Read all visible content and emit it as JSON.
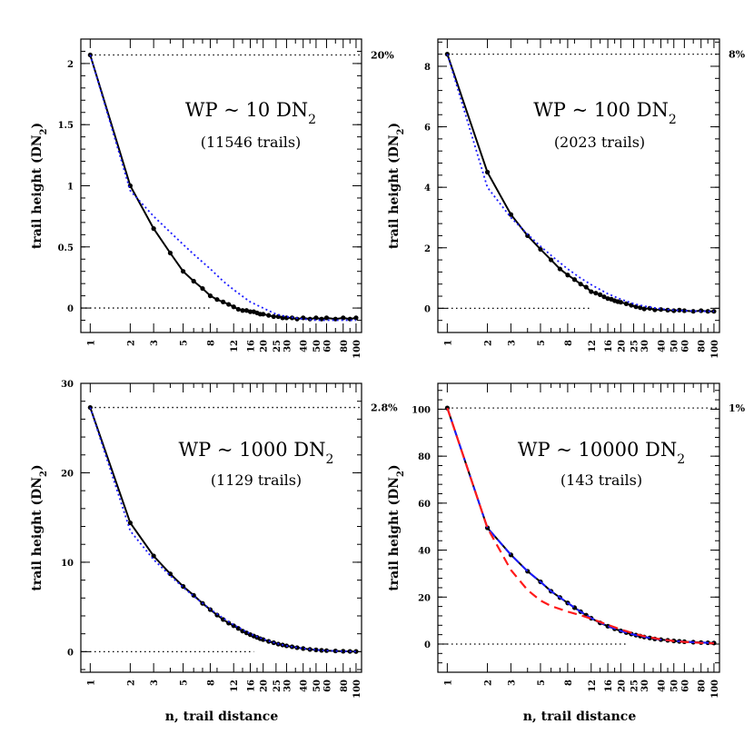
{
  "xlabel": "n, trail distance",
  "chart_data": [
    {
      "type": "line",
      "ylabel": "trail height (DN",
      "ylabel_sub": "2",
      "ylabel_close": ")",
      "label_wp": "WP ~ 10 DN",
      "label_wp_sub": "2",
      "label_trails": "(11546 trails)",
      "percent_label": "20%",
      "ylim": [
        -0.2,
        2.2
      ],
      "yticks": [
        0,
        0.5,
        1,
        1.5,
        2
      ],
      "ytick_labels": [
        "0",
        "0.5",
        "1",
        "1.5",
        "2"
      ],
      "xscale": "log",
      "xlim": [
        0.85,
        110
      ],
      "xticks": [
        1,
        2,
        3,
        5,
        8,
        12,
        16,
        20,
        25,
        30,
        40,
        50,
        60,
        80,
        100
      ],
      "xtick_labels": [
        "1",
        "2",
        "3",
        "5",
        "8",
        "12",
        "16",
        "20",
        "25",
        "30",
        "40",
        "50",
        "60",
        "80",
        "100"
      ],
      "hline_top": 2.07,
      "hline_zero_to_x": 8,
      "series": [
        {
          "style": "data",
          "color": "#000000",
          "x": [
            1,
            2,
            3,
            4,
            5,
            6,
            7,
            8,
            9,
            10,
            11,
            12,
            13,
            14,
            15,
            16,
            17,
            18,
            19,
            20,
            22,
            24,
            26,
            28,
            30,
            33,
            36,
            40,
            45,
            50,
            55,
            60,
            70,
            80,
            90,
            100
          ],
          "y": [
            2.07,
            1.0,
            0.65,
            0.45,
            0.3,
            0.22,
            0.16,
            0.1,
            0.07,
            0.05,
            0.03,
            0.01,
            -0.01,
            -0.02,
            -0.02,
            -0.03,
            -0.03,
            -0.04,
            -0.05,
            -0.05,
            -0.06,
            -0.07,
            -0.07,
            -0.08,
            -0.08,
            -0.08,
            -0.09,
            -0.08,
            -0.09,
            -0.08,
            -0.09,
            -0.08,
            -0.09,
            -0.08,
            -0.09,
            -0.08
          ]
        },
        {
          "style": "model",
          "color": "#1a1aff",
          "x": [
            1,
            2,
            3,
            4,
            5,
            6,
            8,
            10,
            12,
            16,
            20,
            25,
            30,
            40,
            50,
            60,
            80,
            100
          ],
          "y": [
            2.07,
            0.96,
            0.75,
            0.62,
            0.52,
            0.44,
            0.32,
            0.22,
            0.15,
            0.05,
            0.0,
            -0.05,
            -0.07,
            -0.09,
            -0.1,
            -0.1,
            -0.1,
            -0.1
          ]
        }
      ]
    },
    {
      "type": "line",
      "ylabel": "trail height (DN",
      "ylabel_sub": "2",
      "ylabel_close": ")",
      "label_wp": "WP ~ 100 DN",
      "label_wp_sub": "2",
      "label_trails": "(2023 trails)",
      "percent_label": "8%",
      "ylim": [
        -0.8,
        8.9
      ],
      "yticks": [
        0,
        2,
        4,
        6,
        8
      ],
      "ytick_labels": [
        "0",
        "2",
        "4",
        "6",
        "8"
      ],
      "xscale": "log",
      "xlim": [
        0.85,
        110
      ],
      "xticks": [
        1,
        2,
        3,
        5,
        8,
        12,
        16,
        20,
        25,
        30,
        40,
        50,
        60,
        80,
        100
      ],
      "xtick_labels": [
        "1",
        "2",
        "3",
        "5",
        "8",
        "12",
        "16",
        "20",
        "25",
        "30",
        "40",
        "50",
        "60",
        "80",
        "100"
      ],
      "hline_top": 8.4,
      "hline_zero_to_x": 12,
      "series": [
        {
          "style": "data",
          "color": "#000000",
          "x": [
            1,
            2,
            3,
            4,
            5,
            6,
            7,
            8,
            9,
            10,
            11,
            12,
            13,
            14,
            15,
            16,
            17,
            18,
            19,
            20,
            22,
            24,
            26,
            28,
            30,
            33,
            36,
            40,
            45,
            50,
            55,
            60,
            70,
            80,
            90,
            100
          ],
          "y": [
            8.4,
            4.5,
            3.1,
            2.4,
            1.95,
            1.6,
            1.3,
            1.1,
            0.95,
            0.8,
            0.7,
            0.55,
            0.5,
            0.45,
            0.38,
            0.32,
            0.3,
            0.25,
            0.22,
            0.2,
            0.15,
            0.1,
            0.05,
            0.02,
            -0.02,
            0.0,
            -0.05,
            -0.04,
            -0.06,
            -0.08,
            -0.06,
            -0.08,
            -0.1,
            -0.08,
            -0.1,
            -0.1
          ]
        },
        {
          "style": "model",
          "color": "#1a1aff",
          "x": [
            1,
            2,
            3,
            4,
            5,
            6,
            8,
            10,
            12,
            16,
            20,
            25,
            30,
            40,
            50,
            60,
            80,
            100
          ],
          "y": [
            8.4,
            4.0,
            3.0,
            2.45,
            2.05,
            1.75,
            1.3,
            1.0,
            0.78,
            0.48,
            0.3,
            0.15,
            0.07,
            -0.02,
            -0.06,
            -0.08,
            -0.1,
            -0.1
          ]
        }
      ]
    },
    {
      "type": "line",
      "ylabel": "trail height (DN",
      "ylabel_sub": "2",
      "ylabel_close": ")",
      "label_wp": "WP ~ 1000 DN",
      "label_wp_sub": "2",
      "label_trails": "(1129 trails)",
      "percent_label": "2.8%",
      "ylim": [
        -2.3,
        30
      ],
      "yticks": [
        0,
        10,
        20,
        30
      ],
      "ytick_labels": [
        "0",
        "10",
        "20",
        "30"
      ],
      "xscale": "log",
      "xlim": [
        0.85,
        110
      ],
      "xticks": [
        1,
        2,
        3,
        5,
        8,
        12,
        16,
        20,
        25,
        30,
        40,
        50,
        60,
        80,
        100
      ],
      "xtick_labels": [
        "1",
        "2",
        "3",
        "5",
        "8",
        "12",
        "16",
        "20",
        "25",
        "30",
        "40",
        "50",
        "60",
        "80",
        "100"
      ],
      "hline_top": 27.3,
      "hline_zero_to_x": 17,
      "series": [
        {
          "style": "data",
          "color": "#000000",
          "x": [
            1,
            2,
            3,
            4,
            5,
            6,
            7,
            8,
            9,
            10,
            11,
            12,
            13,
            14,
            15,
            16,
            17,
            18,
            19,
            20,
            22,
            24,
            26,
            28,
            30,
            33,
            36,
            40,
            45,
            50,
            55,
            60,
            70,
            80,
            90,
            100
          ],
          "y": [
            27.3,
            14.4,
            10.7,
            8.7,
            7.3,
            6.3,
            5.4,
            4.7,
            4.1,
            3.6,
            3.2,
            2.9,
            2.6,
            2.3,
            2.1,
            1.9,
            1.75,
            1.6,
            1.45,
            1.35,
            1.15,
            1.0,
            0.85,
            0.75,
            0.65,
            0.55,
            0.45,
            0.35,
            0.25,
            0.2,
            0.15,
            0.12,
            0.08,
            0.05,
            0.03,
            0.02
          ]
        },
        {
          "style": "model",
          "color": "#1a1aff",
          "x": [
            1,
            2,
            3,
            4,
            5,
            6,
            8,
            10,
            12,
            16,
            20,
            25,
            30,
            40,
            50,
            60,
            80,
            100
          ],
          "y": [
            27.3,
            13.5,
            10.3,
            8.5,
            7.2,
            6.2,
            4.75,
            3.75,
            3.0,
            2.0,
            1.4,
            0.95,
            0.65,
            0.35,
            0.2,
            0.12,
            0.05,
            0.02
          ]
        }
      ]
    },
    {
      "type": "line",
      "ylabel": "trail height (DN",
      "ylabel_sub": "2",
      "ylabel_close": ")",
      "label_wp": "WP ~ 10000 DN",
      "label_wp_sub": "2",
      "label_trails": "(143 trails)",
      "percent_label": "1%",
      "ylim": [
        -12,
        111
      ],
      "yticks": [
        0,
        20,
        40,
        60,
        80,
        100
      ],
      "ytick_labels": [
        "0",
        "20",
        "40",
        "60",
        "80",
        "100"
      ],
      "xscale": "log",
      "xlim": [
        0.85,
        110
      ],
      "xticks": [
        1,
        2,
        3,
        5,
        8,
        12,
        16,
        20,
        25,
        30,
        40,
        50,
        60,
        80,
        100
      ],
      "xtick_labels": [
        "1",
        "2",
        "3",
        "5",
        "8",
        "12",
        "16",
        "20",
        "25",
        "30",
        "40",
        "50",
        "60",
        "80",
        "100"
      ],
      "hline_top": 100.5,
      "hline_zero_to_x": 22,
      "series": [
        {
          "style": "data",
          "color": "#000000",
          "x": [
            1,
            2,
            3,
            4,
            5,
            6,
            7,
            8,
            9,
            10,
            11,
            12,
            14,
            16,
            18,
            20,
            22,
            24,
            26,
            28,
            30,
            33,
            36,
            40,
            45,
            50,
            55,
            60,
            70,
            80,
            90,
            100
          ],
          "y": [
            100.5,
            49.5,
            38.0,
            31.0,
            26.5,
            22.5,
            19.8,
            17.5,
            15.5,
            13.8,
            12.3,
            11.0,
            9.0,
            7.6,
            6.5,
            5.6,
            4.9,
            4.3,
            3.8,
            3.4,
            3.0,
            2.6,
            2.2,
            1.9,
            1.6,
            1.35,
            1.15,
            1.0,
            0.8,
            0.65,
            0.55,
            0.45
          ]
        },
        {
          "style": "model",
          "color": "#1a1aff",
          "x": [
            1,
            2,
            3,
            4,
            5,
            6,
            8,
            10,
            12,
            16,
            20,
            25,
            30,
            40,
            50,
            60,
            80,
            100
          ],
          "y": [
            100.5,
            49.5,
            38.0,
            31.0,
            26.5,
            22.5,
            17.5,
            13.8,
            11.0,
            7.6,
            5.6,
            4.0,
            3.0,
            1.9,
            1.35,
            1.0,
            0.65,
            0.45
          ]
        },
        {
          "style": "model2",
          "color": "#ff1a1a",
          "x": [
            1,
            2,
            3,
            4,
            5,
            6,
            8,
            10,
            12,
            16,
            20,
            25,
            30,
            40,
            50,
            60,
            80,
            100
          ],
          "y": [
            100.5,
            49.5,
            31.5,
            23.0,
            18.5,
            16.2,
            13.8,
            12.3,
            10.8,
            8.2,
            6.2,
            4.5,
            3.3,
            2.0,
            1.3,
            0.9,
            0.5,
            0.3
          ]
        }
      ]
    }
  ]
}
